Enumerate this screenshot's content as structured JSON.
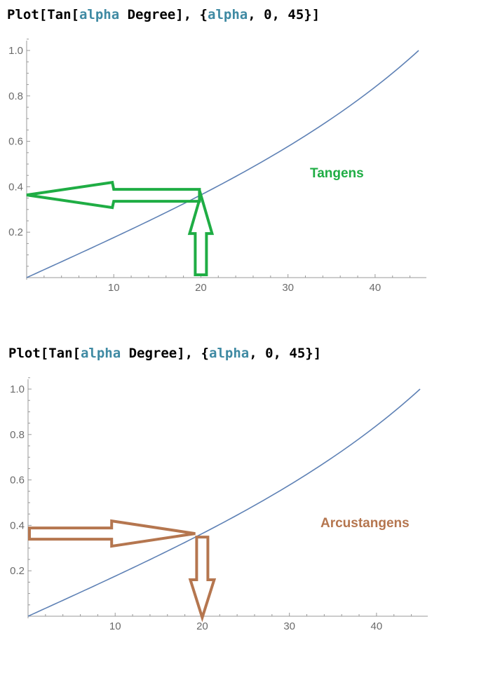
{
  "plots": [
    {
      "code": {
        "p1": "Plot[Tan[",
        "v1": "alpha",
        "p2": " Degree], {",
        "v2": "alpha",
        "p3": ", 0, 45}]"
      },
      "annotation": "Tangens",
      "annotation_color": "#1fad44",
      "arrow_color": "#1fad44"
    },
    {
      "code": {
        "p1": "Plot[Tan[",
        "v1": "alpha",
        "p2": " Degree], {",
        "v2": "alpha",
        "p3": ", 0, 45}]"
      },
      "annotation": "Arcustangens",
      "annotation_color": "#b5764f",
      "arrow_color": "#b5764f"
    }
  ],
  "chart_data": [
    {
      "type": "line",
      "function": "tan(alpha degrees)",
      "xlim": [
        0,
        45
      ],
      "ylim": [
        0,
        1.0
      ],
      "x_ticks": [
        10,
        20,
        30,
        40
      ],
      "y_ticks": [
        0.2,
        0.4,
        0.6,
        0.8,
        1.0
      ],
      "x_tick_labels": [
        "10",
        "20",
        "30",
        "40"
      ],
      "y_tick_labels": [
        "0.2",
        "0.4",
        "0.6",
        "0.8",
        "1.0"
      ],
      "series": [
        {
          "color": "#5e81b5",
          "x": [
            0,
            5,
            10,
            15,
            20,
            25,
            30,
            35,
            40,
            45
          ],
          "y": [
            0,
            0.087,
            0.176,
            0.268,
            0.364,
            0.466,
            0.577,
            0.7,
            0.839,
            1.0
          ]
        }
      ],
      "arrow_reading": {
        "x": 20,
        "y": 0.364,
        "direction": "x-to-y"
      },
      "grid": false
    },
    {
      "type": "line",
      "function": "tan(alpha degrees)",
      "xlim": [
        0,
        45
      ],
      "ylim": [
        0,
        1.0
      ],
      "x_ticks": [
        10,
        20,
        30,
        40
      ],
      "y_ticks": [
        0.2,
        0.4,
        0.6,
        0.8,
        1.0
      ],
      "x_tick_labels": [
        "10",
        "20",
        "30",
        "40"
      ],
      "y_tick_labels": [
        "0.2",
        "0.4",
        "0.6",
        "0.8",
        "1.0"
      ],
      "series": [
        {
          "color": "#5e81b5",
          "x": [
            0,
            5,
            10,
            15,
            20,
            25,
            30,
            35,
            40,
            45
          ],
          "y": [
            0,
            0.087,
            0.176,
            0.268,
            0.364,
            0.466,
            0.577,
            0.7,
            0.839,
            1.0
          ]
        }
      ],
      "arrow_reading": {
        "x": 20,
        "y": 0.364,
        "direction": "y-to-x"
      },
      "grid": false
    }
  ]
}
